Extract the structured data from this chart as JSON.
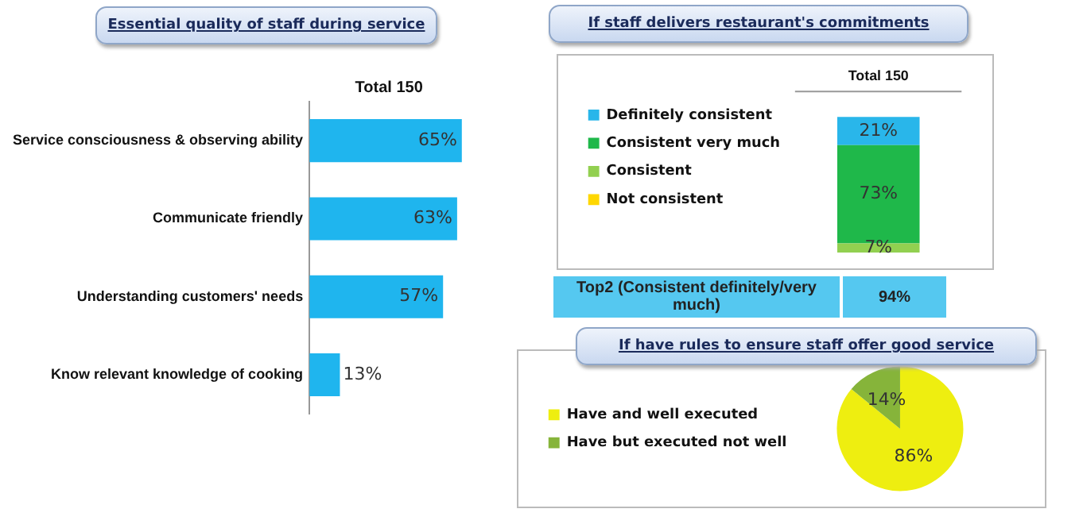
{
  "chart_data": [
    {
      "type": "bar",
      "orientation": "horizontal",
      "title": "Essential quality of staff during service",
      "categories": [
        "Service consciousness & observing ability",
        "Communicate friendly",
        "Understanding customers' needs",
        "Know relevant knowledge of cooking"
      ],
      "values": [
        65,
        63,
        57,
        13
      ],
      "value_labels": [
        "65%",
        "63%",
        "57%",
        "13%"
      ],
      "color": "#1fb5ee",
      "annotations": [
        "Total 150"
      ],
      "grid": false,
      "legend": false
    },
    {
      "type": "bar",
      "stacked": true,
      "title": "If staff delivers restaurant's commitments",
      "categories": [
        "Total 150"
      ],
      "series": [
        {
          "name": "Not consistent",
          "color": "#ffd700",
          "values": [
            0
          ],
          "value_labels": [
            null
          ]
        },
        {
          "name": "Consistent",
          "color": "#92d050",
          "values": [
            7
          ],
          "value_labels": [
            "7%"
          ]
        },
        {
          "name": "Consistent very much",
          "color": "#1fb84a",
          "values": [
            73
          ],
          "value_labels": [
            "73%"
          ]
        },
        {
          "name": "Definitely consistent",
          "color": "#29b6ea",
          "values": [
            21
          ],
          "value_labels": [
            "21%"
          ]
        }
      ],
      "annotations": [
        "Top2 (Consistent definitely/very much)",
        "94%"
      ],
      "grid": false,
      "legend": "left"
    },
    {
      "type": "pie",
      "title": "If have rules to ensure staff offer good service",
      "categories": [
        "Have and well executed",
        "Have but executed not well"
      ],
      "values": [
        86,
        14
      ],
      "colors": [
        "#eeee10",
        "#86b43a"
      ],
      "value_labels": [
        "86%",
        "14%"
      ],
      "legend": "left"
    }
  ]
}
